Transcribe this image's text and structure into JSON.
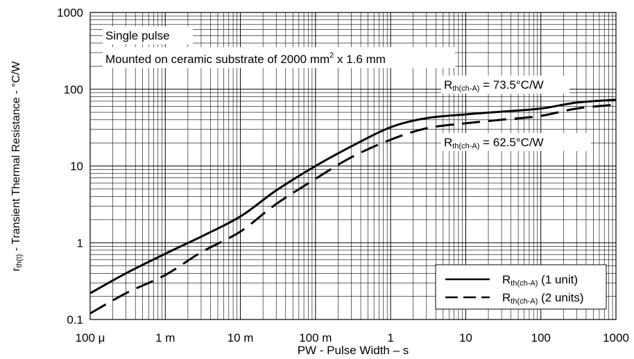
{
  "chart_data": {
    "type": "line",
    "x_scale": "log",
    "y_scale": "log",
    "xlim": [
      0.0001,
      1000
    ],
    "ylim": [
      0.1,
      1000
    ],
    "grid": true,
    "xlabel": "PW - Pulse Width – s",
    "ylabel": {
      "r": "r",
      "sub": "th(t)",
      "rest": " - Transient Thermal Resistance - °C/W"
    },
    "x_ticks": [
      {
        "value": 0.0001,
        "label": "100 μ"
      },
      {
        "value": 0.001,
        "label": "1 m"
      },
      {
        "value": 0.01,
        "label": "10 m"
      },
      {
        "value": 0.1,
        "label": "100 m"
      },
      {
        "value": 1,
        "label": "1"
      },
      {
        "value": 10,
        "label": "10"
      },
      {
        "value": 100,
        "label": "100"
      },
      {
        "value": 1000,
        "label": "1000"
      }
    ],
    "y_ticks": [
      {
        "value": 0.1,
        "label": "0.1"
      },
      {
        "value": 1,
        "label": "1"
      },
      {
        "value": 10,
        "label": "10"
      },
      {
        "value": 100,
        "label": "100"
      },
      {
        "value": 1000,
        "label": "1000"
      }
    ],
    "annotations": {
      "line1": "Single pulse",
      "line2_a": "Mounted on ceramic substrate of 2000 mm",
      "line2_sup": "2",
      "line2_b": " x 1.6 mm",
      "r1": {
        "main": "R",
        "sub": "th(ch-A)",
        "rest": " = 73.5°C/W"
      },
      "r2": {
        "main": "R",
        "sub": "th(ch-A)",
        "rest": " = 62.5°C/W"
      }
    },
    "legend_position": "bottom-right",
    "series": [
      {
        "name": {
          "main": "R",
          "sub": "th(ch-A)",
          "rest": " (1 unit)"
        },
        "dash": "solid",
        "x": [
          0.0001,
          0.0003,
          0.001,
          0.003,
          0.01,
          0.03,
          0.1,
          0.3,
          1,
          3,
          10,
          30,
          100,
          300,
          1000
        ],
        "y": [
          0.22,
          0.4,
          0.72,
          1.2,
          2.2,
          4.8,
          10,
          18,
          32,
          42,
          47,
          51,
          56,
          67,
          73
        ]
      },
      {
        "name": {
          "main": "R",
          "sub": "th(ch-A)",
          "rest": " (2 units)"
        },
        "dash": "dashed",
        "x": [
          0.0001,
          0.0003,
          0.001,
          0.003,
          0.01,
          0.03,
          0.1,
          0.3,
          1,
          3,
          10,
          30,
          100,
          300,
          1000
        ],
        "y": [
          0.12,
          0.22,
          0.38,
          0.75,
          1.4,
          3.2,
          6.8,
          13,
          22,
          31,
          36,
          40,
          45,
          56,
          63
        ]
      }
    ]
  }
}
